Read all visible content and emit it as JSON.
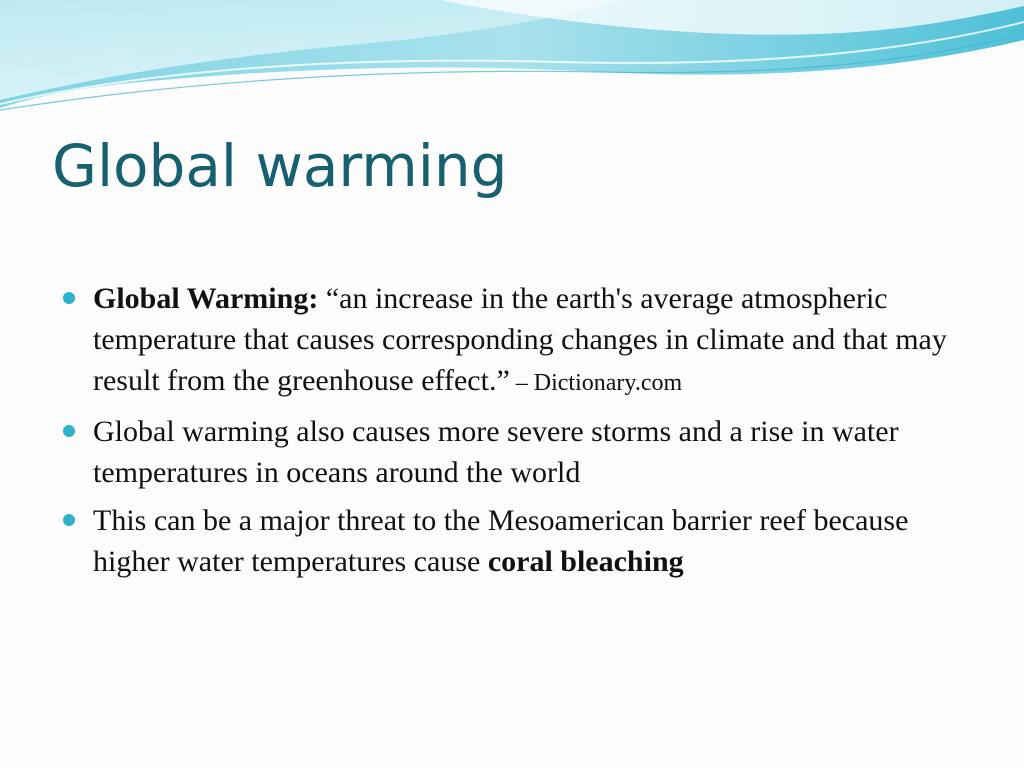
{
  "slide": {
    "title": "Global warming",
    "bullets": [
      {
        "term": "Global Warming:",
        "quote_open": " “",
        "text": "an increase in the earth's average atmospheric temperature that causes corresponding changes in climate and that may result from the greenhouse effect.”",
        "source": " – Dictionary.com"
      },
      {
        "text": "Global warming also causes more severe storms and a rise in water temperatures in oceans around the world"
      },
      {
        "text": "This can be a major threat to the Mesoamerican barrier reef because higher water temperatures cause ",
        "emphasis": "coral bleaching"
      }
    ]
  },
  "colors": {
    "title": "#17606f",
    "bullet_marker": "#2cb3c7",
    "wave_light": "#bfe9f1",
    "wave_dark": "#5cc6dc"
  }
}
